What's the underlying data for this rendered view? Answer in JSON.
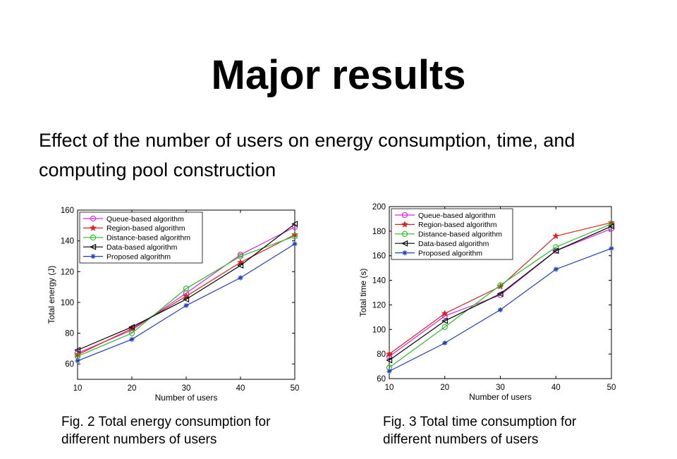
{
  "slide": {
    "title": "Major results",
    "subtitle": "Effect of the number of users on energy consumption, time, and computing pool construction"
  },
  "captions": {
    "energy": {
      "line1": "Fig. 2  Total energy consumption for",
      "line2": "different numbers of users"
    },
    "time": {
      "line1": "Fig. 3  Total time consumption for",
      "line2": "different numbers of users"
    }
  },
  "series_styles": [
    {
      "color": "#e020e0",
      "marker": "circle"
    },
    {
      "color": "#e02020",
      "marker": "star"
    },
    {
      "color": "#20c020",
      "marker": "circle"
    },
    {
      "color": "#000000",
      "marker": "triangle-left"
    },
    {
      "color": "#1f3fbf",
      "marker": "asterisk"
    }
  ],
  "chart_data": [
    {
      "type": "line",
      "x": [
        10,
        20,
        30,
        40,
        50
      ],
      "xlabel": "Number of users",
      "ylabel": "Total energy (J)",
      "xlim": [
        10,
        50
      ],
      "ylim": [
        50,
        160
      ],
      "xticks": [
        "10",
        "20",
        "30",
        "40",
        "50"
      ],
      "yticks": [
        "60",
        "80",
        "100",
        "120",
        "140",
        "160"
      ],
      "legend": "top-left",
      "series": [
        {
          "name": "Queue-based algorithm",
          "values": [
            67,
            82,
            106,
            131,
            149
          ]
        },
        {
          "name": "Region-based algorithm",
          "values": [
            66,
            83,
            104,
            126,
            144
          ]
        },
        {
          "name": "Distance-based algorithm",
          "values": [
            65,
            80,
            109,
            130,
            143
          ]
        },
        {
          "name": "Data-based algorithm",
          "values": [
            69,
            84,
            102,
            124,
            151
          ]
        },
        {
          "name": "Proposed algorithm",
          "values": [
            62,
            76,
            98,
            116,
            138
          ]
        }
      ]
    },
    {
      "type": "line",
      "x": [
        10,
        20,
        30,
        40,
        50
      ],
      "xlabel": "Number of users",
      "ylabel": "Total time (s)",
      "xlim": [
        10,
        50
      ],
      "ylim": [
        60,
        200
      ],
      "xticks": [
        "10",
        "20",
        "30",
        "40",
        "50"
      ],
      "yticks": [
        "60",
        "80",
        "100",
        "120",
        "140",
        "160",
        "180",
        "200"
      ],
      "legend": "top-left",
      "series": [
        {
          "name": "Queue-based algorithm",
          "values": [
            78,
            111,
            128,
            164,
            182
          ]
        },
        {
          "name": "Region-based algorithm",
          "values": [
            80,
            113,
            135,
            176,
            187
          ]
        },
        {
          "name": "Distance-based algorithm",
          "values": [
            69,
            102,
            136,
            167,
            186
          ]
        },
        {
          "name": "Data-based algorithm",
          "values": [
            75,
            107,
            129,
            164,
            184
          ]
        },
        {
          "name": "Proposed algorithm",
          "values": [
            66,
            89,
            116,
            149,
            166
          ]
        }
      ]
    }
  ]
}
